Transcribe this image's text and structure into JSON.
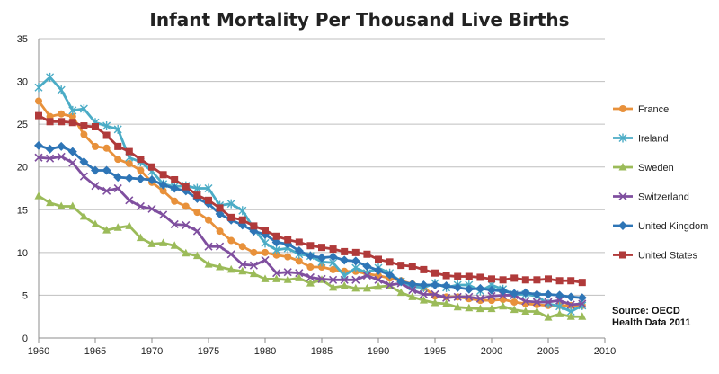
{
  "chart_data": {
    "type": "line",
    "title": "Infant Mortality Per Thousand Live Births",
    "xlabel": "",
    "ylabel": "",
    "xlim": [
      1960,
      2010
    ],
    "ylim": [
      0,
      35
    ],
    "x_ticks": [
      1960,
      1965,
      1970,
      1975,
      1980,
      1985,
      1990,
      1995,
      2000,
      2005,
      2010
    ],
    "y_ticks": [
      0,
      5,
      10,
      15,
      20,
      25,
      30,
      35
    ],
    "grid": "horizontal",
    "legend_position": "right",
    "annotation": [
      "Source: OECD",
      "Health Data 2011"
    ],
    "x": [
      1960,
      1961,
      1962,
      1963,
      1964,
      1965,
      1966,
      1967,
      1968,
      1969,
      1970,
      1971,
      1972,
      1973,
      1974,
      1975,
      1976,
      1977,
      1978,
      1979,
      1980,
      1981,
      1982,
      1983,
      1984,
      1985,
      1986,
      1987,
      1988,
      1989,
      1990,
      1991,
      1992,
      1993,
      1994,
      1995,
      1996,
      1997,
      1998,
      1999,
      2000,
      2001,
      2002,
      2003,
      2004,
      2005,
      2006,
      2007,
      2008
    ],
    "series": [
      {
        "name": "France",
        "color": "#E8913B",
        "marker": "circle",
        "values": [
          27.7,
          25.9,
          26.2,
          25.9,
          23.8,
          22.4,
          22.2,
          20.9,
          20.4,
          19.6,
          18.2,
          17.2,
          16.0,
          15.4,
          14.7,
          13.8,
          12.5,
          11.4,
          10.7,
          10.0,
          10.0,
          9.7,
          9.5,
          9.0,
          8.3,
          8.3,
          8.0,
          7.8,
          7.8,
          7.5,
          7.3,
          7.0,
          6.7,
          6.3,
          5.9,
          4.9,
          4.8,
          4.8,
          4.6,
          4.4,
          4.4,
          4.5,
          4.2,
          4.0,
          3.9,
          3.8,
          3.8,
          3.8,
          3.8
        ]
      },
      {
        "name": "Ireland",
        "color": "#4BACC6",
        "marker": "asterisk",
        "values": [
          29.3,
          30.5,
          29.0,
          26.6,
          26.8,
          25.2,
          24.8,
          24.4,
          21.1,
          20.6,
          19.5,
          18.0,
          17.7,
          17.8,
          17.5,
          17.5,
          15.5,
          15.7,
          14.9,
          12.8,
          11.1,
          10.3,
          10.5,
          9.8,
          9.6,
          8.9,
          8.8,
          7.3,
          8.2,
          7.6,
          8.2,
          7.6,
          6.6,
          6.0,
          5.9,
          6.4,
          5.9,
          6.2,
          6.2,
          5.5,
          6.2,
          5.7,
          5.1,
          5.1,
          4.9,
          4.0,
          3.7,
          3.1,
          3.8
        ]
      },
      {
        "name": "Sweden",
        "color": "#9BBB59",
        "marker": "triangle",
        "values": [
          16.6,
          15.8,
          15.4,
          15.4,
          14.2,
          13.3,
          12.6,
          12.9,
          13.1,
          11.7,
          11.0,
          11.1,
          10.8,
          9.9,
          9.6,
          8.6,
          8.3,
          8.0,
          7.8,
          7.5,
          6.9,
          6.9,
          6.8,
          7.0,
          6.4,
          6.8,
          5.9,
          6.1,
          5.8,
          5.8,
          6.0,
          6.1,
          5.3,
          4.8,
          4.4,
          4.1,
          4.0,
          3.6,
          3.5,
          3.4,
          3.4,
          3.7,
          3.3,
          3.1,
          3.1,
          2.4,
          2.8,
          2.5,
          2.5
        ]
      },
      {
        "name": "Switzerland",
        "color": "#7F4F9F",
        "marker": "x",
        "values": [
          21.1,
          21.0,
          21.2,
          20.5,
          18.9,
          17.8,
          17.2,
          17.5,
          16.1,
          15.4,
          15.1,
          14.4,
          13.3,
          13.2,
          12.5,
          10.7,
          10.7,
          9.8,
          8.6,
          8.5,
          9.1,
          7.6,
          7.7,
          7.6,
          7.1,
          6.9,
          6.8,
          6.8,
          6.8,
          7.3,
          6.8,
          6.2,
          6.4,
          5.6,
          5.1,
          5.1,
          4.7,
          4.8,
          4.8,
          4.6,
          4.9,
          5.0,
          5.0,
          4.3,
          4.2,
          4.2,
          4.4,
          3.9,
          4.0
        ]
      },
      {
        "name": "United Kingdom",
        "color": "#2E75B6",
        "marker": "diamond",
        "values": [
          22.5,
          22.1,
          22.4,
          21.8,
          20.6,
          19.6,
          19.6,
          18.8,
          18.7,
          18.6,
          18.5,
          17.9,
          17.5,
          17.2,
          16.3,
          15.7,
          14.5,
          13.8,
          13.2,
          12.5,
          12.1,
          11.2,
          11.0,
          10.2,
          9.6,
          9.4,
          9.5,
          9.1,
          9.0,
          8.4,
          7.9,
          7.4,
          6.6,
          6.3,
          6.2,
          6.2,
          6.1,
          5.9,
          5.7,
          5.8,
          5.6,
          5.5,
          5.2,
          5.3,
          5.1,
          5.1,
          5.0,
          4.8,
          4.7
        ]
      },
      {
        "name": "United States",
        "color": "#B03A3A",
        "marker": "square",
        "values": [
          26.0,
          25.3,
          25.3,
          25.2,
          24.8,
          24.7,
          23.7,
          22.4,
          21.8,
          20.9,
          20.0,
          19.1,
          18.5,
          17.7,
          16.7,
          16.1,
          15.2,
          14.1,
          13.8,
          13.1,
          12.6,
          11.9,
          11.5,
          11.2,
          10.8,
          10.6,
          10.4,
          10.1,
          10.0,
          9.8,
          9.2,
          8.9,
          8.5,
          8.4,
          8.0,
          7.6,
          7.3,
          7.2,
          7.2,
          7.1,
          6.9,
          6.8,
          7.0,
          6.8,
          6.8,
          6.9,
          6.7,
          6.7,
          6.5
        ]
      }
    ]
  }
}
